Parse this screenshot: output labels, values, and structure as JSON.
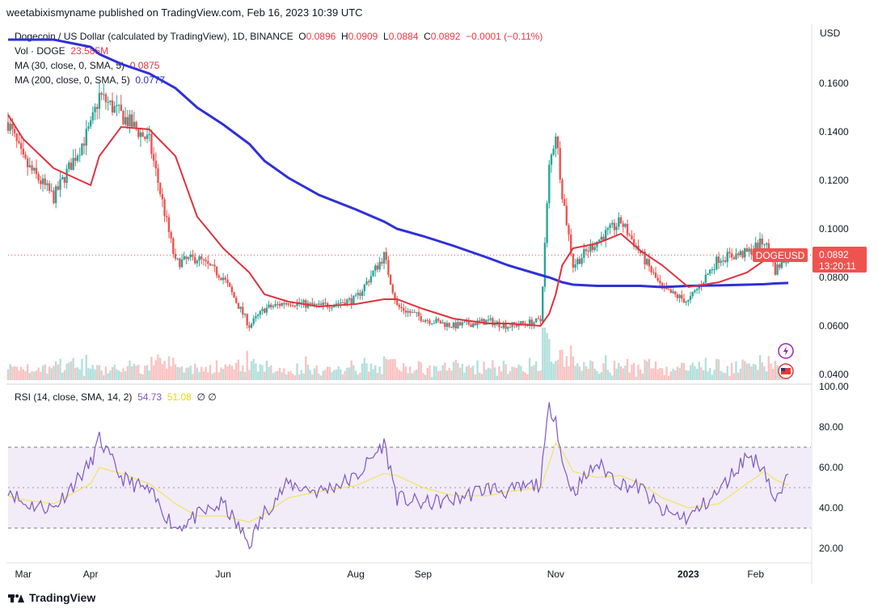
{
  "header": {
    "published": "weetabixismyname published on TradingView.com, Feb 16, 2023 10:39 UTC"
  },
  "legend": {
    "symbol": "Dogecoin / US Dollar (calculated by TradingView), 1D, BINANCE",
    "o_label": "O",
    "o": "0.0896",
    "h_label": "H",
    "h": "0.0909",
    "l_label": "L",
    "l": "0.0884",
    "c_label": "C",
    "c": "0.0892",
    "change": "−0.0001 (−0.11%)",
    "vol_label": "Vol · DOGE",
    "vol": "23.585M",
    "ma30_label": "MA (30, close, 0, SMA, 5)",
    "ma30": "0.0875",
    "ma200_label": "MA (200, close, 0, SMA, 5)",
    "ma200": "0.0777"
  },
  "rsi_legend": {
    "label": "RSI (14, close, SMA, 14, 2)",
    "rsi": "54.73",
    "sma": "51.08",
    "extra": "∅ ∅"
  },
  "price_axis": {
    "currency": "USD",
    "ticks": [
      "0.1600",
      "0.1400",
      "0.1200",
      "0.1000",
      "0.0800",
      "0.0600",
      "0.0400"
    ]
  },
  "rsi_axis": {
    "ticks": [
      "100.00",
      "80.00",
      "60.00",
      "40.00",
      "20.00"
    ]
  },
  "time_axis": {
    "ticks": [
      "Mar",
      "Apr",
      "Jun",
      "Aug",
      "Sep",
      "Nov",
      "2023",
      "Feb"
    ]
  },
  "price_tag": {
    "symbol": "DOGEUSD",
    "price": "0.0892",
    "countdown": "13:20:11"
  },
  "footer": {
    "brand": "TradingView"
  },
  "colors": {
    "up": "#26a69a",
    "down": "#ef5350",
    "ma30": "#e0323f",
    "ma200": "#2e30d8",
    "rsi": "#7e57c2",
    "rsi_ma": "#f3e36b",
    "rsi_band": "#ede7f6"
  },
  "chart_data": [
    {
      "type": "candlestick",
      "ylabel": "USD",
      "ylim": [
        0.035,
        0.18
      ],
      "x": [
        "2022-02-22",
        "2022-03-01",
        "2022-03-15",
        "2022-04-01",
        "2022-04-05",
        "2022-04-15",
        "2022-04-28",
        "2022-05-10",
        "2022-05-20",
        "2022-06-01",
        "2022-06-13",
        "2022-06-20",
        "2022-07-01",
        "2022-07-15",
        "2022-08-01",
        "2022-08-14",
        "2022-08-20",
        "2022-09-01",
        "2022-09-15",
        "2022-10-01",
        "2022-10-10",
        "2022-10-25",
        "2022-10-29",
        "2022-11-01",
        "2022-11-04",
        "2022-11-09",
        "2022-11-20",
        "2022-12-01",
        "2022-12-10",
        "2022-12-20",
        "2023-01-01",
        "2023-01-15",
        "2023-01-28",
        "2023-02-05",
        "2023-02-10",
        "2023-02-16"
      ],
      "close": [
        0.144,
        0.128,
        0.113,
        0.142,
        0.155,
        0.147,
        0.136,
        0.086,
        0.088,
        0.08,
        0.06,
        0.067,
        0.07,
        0.068,
        0.071,
        0.089,
        0.068,
        0.063,
        0.06,
        0.062,
        0.06,
        0.062,
        0.125,
        0.14,
        0.115,
        0.085,
        0.095,
        0.103,
        0.09,
        0.075,
        0.07,
        0.088,
        0.09,
        0.095,
        0.083,
        0.0892
      ],
      "ma30": [
        0.147,
        0.137,
        0.125,
        0.118,
        0.13,
        0.142,
        0.141,
        0.13,
        0.105,
        0.092,
        0.082,
        0.073,
        0.07,
        0.068,
        0.069,
        0.071,
        0.071,
        0.067,
        0.063,
        0.061,
        0.061,
        0.06,
        0.065,
        0.073,
        0.085,
        0.092,
        0.094,
        0.098,
        0.091,
        0.085,
        0.076,
        0.078,
        0.082,
        0.087,
        0.088,
        0.0875
      ],
      "ma200": [
        0.185,
        0.183,
        0.18,
        0.175,
        0.172,
        0.168,
        0.164,
        0.158,
        0.15,
        0.143,
        0.135,
        0.128,
        0.121,
        0.114,
        0.108,
        0.103,
        0.1,
        0.097,
        0.093,
        0.088,
        0.085,
        0.081,
        0.08,
        0.079,
        0.078,
        0.077,
        0.0765,
        0.0765,
        0.0765,
        0.076,
        0.0765,
        0.0767,
        0.077,
        0.0772,
        0.0775,
        0.0777
      ],
      "volume_note": "relative volume bars with spikes around Apr, May, Jun, Nov 2022"
    },
    {
      "type": "line",
      "title": "RSI (14, close, SMA, 14, 2)",
      "ylim": [
        15,
        100
      ],
      "bands": [
        30,
        70
      ],
      "x": [
        "2022-02-22",
        "2022-03-01",
        "2022-03-15",
        "2022-04-01",
        "2022-04-05",
        "2022-04-15",
        "2022-04-28",
        "2022-05-10",
        "2022-05-20",
        "2022-06-01",
        "2022-06-13",
        "2022-06-20",
        "2022-07-01",
        "2022-07-15",
        "2022-08-01",
        "2022-08-14",
        "2022-08-20",
        "2022-09-01",
        "2022-09-15",
        "2022-10-01",
        "2022-10-10",
        "2022-10-25",
        "2022-10-29",
        "2022-11-01",
        "2022-11-04",
        "2022-11-09",
        "2022-11-20",
        "2022-12-01",
        "2022-12-10",
        "2022-12-20",
        "2023-01-01",
        "2023-01-15",
        "2023-01-28",
        "2023-02-05",
        "2023-02-10",
        "2023-02-16"
      ],
      "series": [
        {
          "name": "RSI",
          "values": [
            50,
            42,
            40,
            62,
            74,
            55,
            48,
            30,
            36,
            42,
            22,
            38,
            52,
            48,
            55,
            72,
            45,
            42,
            44,
            50,
            48,
            52,
            90,
            85,
            62,
            48,
            62,
            52,
            50,
            38,
            35,
            48,
            66,
            60,
            42,
            54.73
          ]
        },
        {
          "name": "RSI-MA",
          "values": [
            46,
            44,
            42,
            52,
            60,
            57,
            52,
            42,
            36,
            36,
            33,
            37,
            45,
            48,
            51,
            57,
            56,
            50,
            46,
            46,
            48,
            50,
            62,
            72,
            68,
            58,
            55,
            56,
            52,
            45,
            40,
            42,
            52,
            58,
            54,
            51.08
          ]
        }
      ]
    }
  ]
}
